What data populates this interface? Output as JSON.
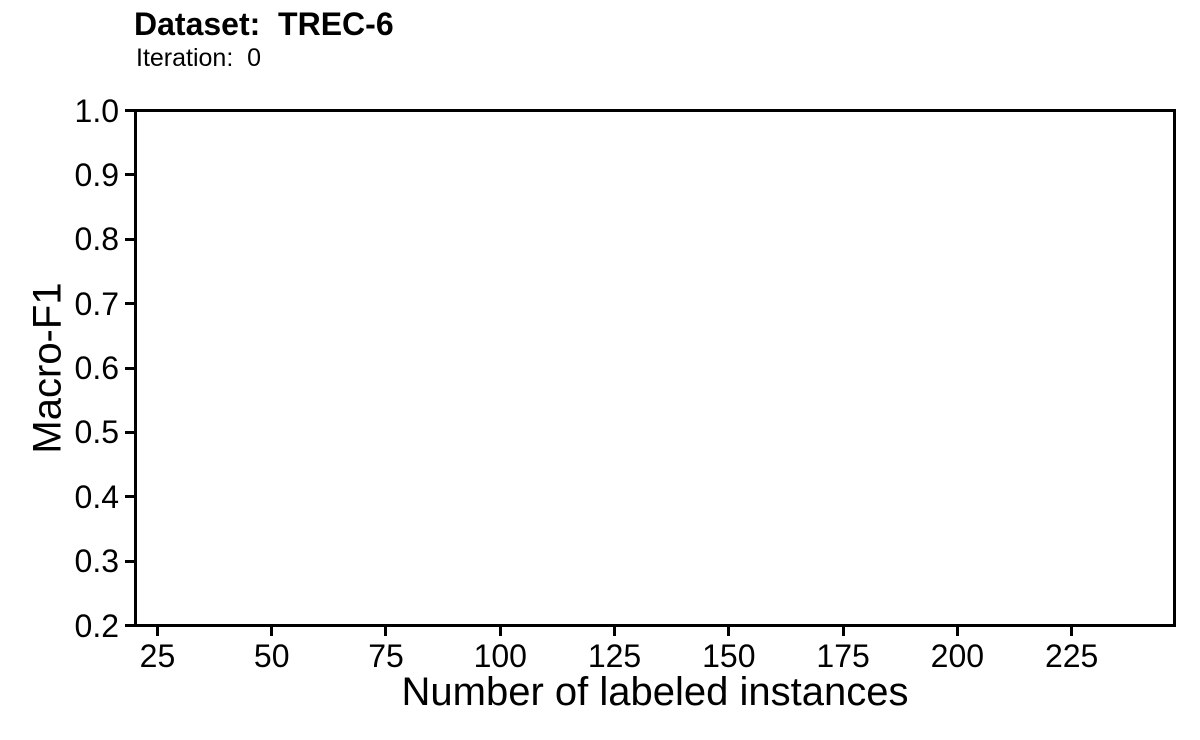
{
  "colors": {
    "background": "#ffffff",
    "text": "#000000",
    "axis": "#000000"
  },
  "chart_data": {
    "type": "line",
    "title": "Dataset:  TREC-6",
    "subtitle": "Iteration:  0",
    "xlabel": "Number of labeled instances",
    "ylabel": "Macro-F1",
    "x_ticks": [
      25,
      50,
      75,
      100,
      125,
      150,
      175,
      200,
      225
    ],
    "y_ticks": [
      1.0,
      0.9,
      0.8,
      0.7,
      0.6,
      0.5,
      0.4,
      0.3,
      0.2
    ],
    "xlim": [
      20.2,
      247.5
    ],
    "ylim": [
      0.2,
      1.0
    ],
    "grid": false,
    "legend": null,
    "series": [],
    "note": "plot area is empty (no data series drawn)"
  }
}
